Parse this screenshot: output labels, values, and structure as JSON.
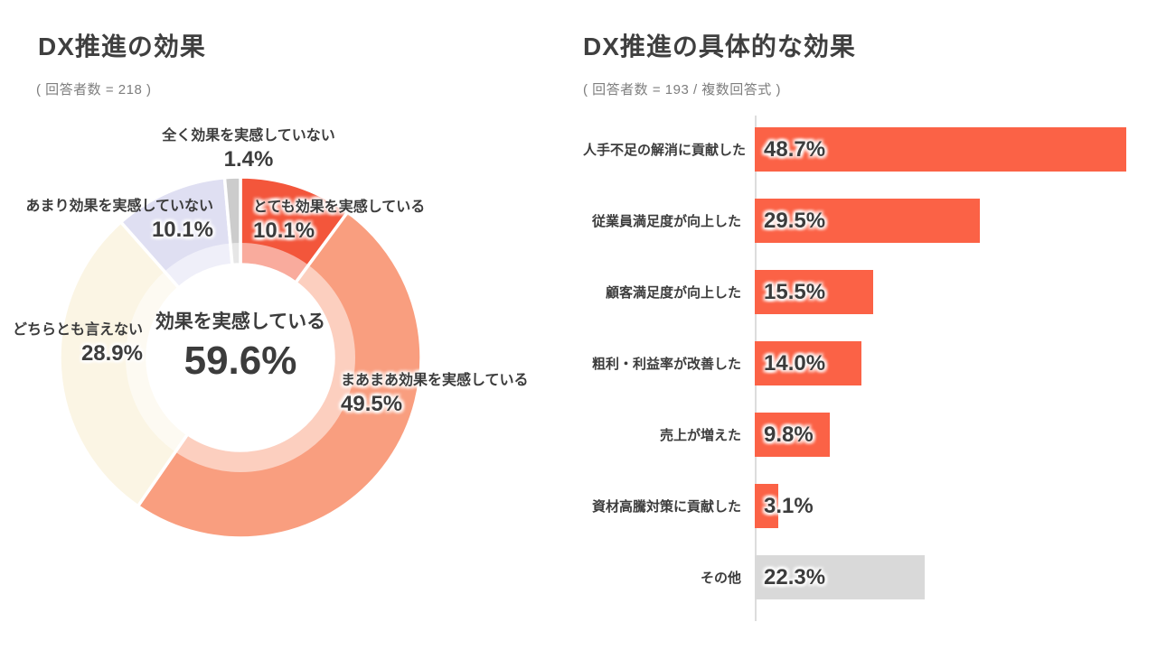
{
  "colors": {
    "accent_red": "#F3563B",
    "bar_red": "#FB6246",
    "bar_gray": "#D9D9D9",
    "text_dark": "#3C3C3C",
    "text_muted": "#7E7E7E",
    "axis_line": "#DDDDDD"
  },
  "chart_data": [
    {
      "type": "pie",
      "donut": true,
      "title": "DX推進の効果",
      "subtitle": "( 回答者数 = 218 )",
      "start_angle_deg": 0,
      "direction": "clockwise",
      "legend": false,
      "segments": [
        {
          "label": "とても効果を実感している",
          "value": 10.1,
          "display": "10.1%",
          "color": "#F3563B"
        },
        {
          "label": "まあまあ効果を実感している",
          "value": 49.5,
          "display": "49.5%",
          "color": "#F99E7F"
        },
        {
          "label": "どちらとも言えない",
          "value": 28.9,
          "display": "28.9%",
          "color": "#FBF5E4"
        },
        {
          "label": "あまり効果を実感していない",
          "value": 10.1,
          "display": "10.1%",
          "color": "#DFDFF2"
        },
        {
          "label": "全く効果を実感していない",
          "value": 1.4,
          "display": "1.4%",
          "color": "#CCCCCC"
        }
      ],
      "center": {
        "label": "効果を実感している",
        "display": "59.6%"
      }
    },
    {
      "type": "bar",
      "orientation": "horizontal",
      "title": "DX推進の具体的な効果",
      "subtitle": "( 回答者数 = 193 / 複数回答式 )",
      "grid": false,
      "legend": false,
      "xlim": [
        0,
        52.7
      ],
      "categories": [
        "人手不足の解消に貢献した",
        "従業員満足度が向上した",
        "顧客満足度が向上した",
        "粗利・利益率が改善した",
        "売上が増えた",
        "資材高騰対策に貢献した",
        "その他"
      ],
      "values": [
        48.7,
        29.5,
        15.5,
        14.0,
        9.8,
        3.1,
        22.3
      ],
      "value_labels": [
        "48.7%",
        "29.5%",
        "15.5%",
        "14.0%",
        "9.8%",
        "3.1%",
        "22.3%"
      ],
      "bar_colors": [
        "#FB6246",
        "#FB6246",
        "#FB6246",
        "#FB6246",
        "#FB6246",
        "#FB6246",
        "#D9D9D9"
      ]
    }
  ]
}
